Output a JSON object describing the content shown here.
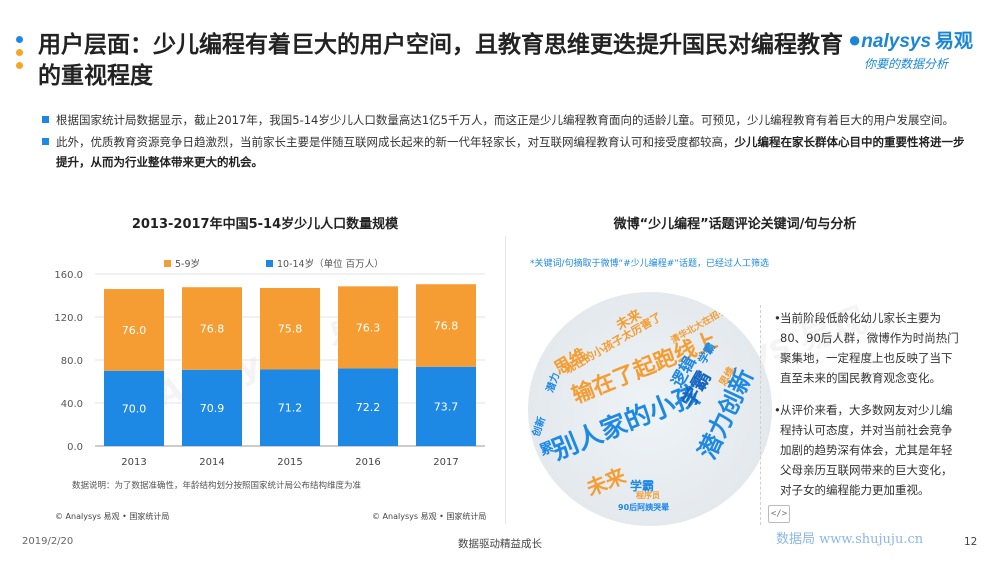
{
  "header": {
    "title": "用户层面：少儿编程有着巨大的用户空间，且教育思维更迭提升国民对编程教育的重视程度",
    "dot_colors": [
      "#1e88e5",
      "#f5a623",
      "#f5a623"
    ],
    "logo_text": "nalysys",
    "logo_cn": "易观",
    "logo_tagline": "你要的数据分析"
  },
  "bullets": [
    {
      "text": "根据国家统计局数据显示，截止2017年，我国5-14岁少儿人口数量高达1亿5千万人，而这正是少儿编程教育面向的适龄儿童。可预见，少儿编程教育有着巨大的用户发展空间。",
      "bold": ""
    },
    {
      "text": "此外，优质教育资源竞争日趋激烈，当前家长主要是伴随互联网成长起来的新一代年轻家长，对互联网编程教育认可和接受度都较高，",
      "bold": "少儿编程在家长群体心目中的重要性将进一步提升，从而为行业整体带来更大的机会。"
    }
  ],
  "chart_data": {
    "type": "bar",
    "stacked": true,
    "title": "2013-2017年中国5-14岁少儿人口数量规模",
    "categories": [
      "2013",
      "2014",
      "2015",
      "2016",
      "2017"
    ],
    "series": [
      {
        "name": "10-14岁（单位 百万人）",
        "values": [
          70.0,
          70.9,
          71.2,
          72.2,
          73.7
        ],
        "color": "#1e88e5"
      },
      {
        "name": "5-9岁",
        "values": [
          76.0,
          76.8,
          75.8,
          76.3,
          76.8
        ],
        "color": "#f59d32"
      }
    ],
    "ylim": [
      0,
      160
    ],
    "yticks": [
      "0.0",
      "40.0",
      "80.0",
      "120.0",
      "160.0"
    ],
    "grid": true,
    "legend_position": "top"
  },
  "chart_note": "数据说明：为了数据准确性，年龄结构划分按照国家统计局公布结构维度为准",
  "source_left": "© Analysys 易观 • 国家统计局",
  "source_right": "© Analysys 易观 • 国家统计局",
  "wordcloud": {
    "title": "微博“少儿编程”话题评论关键词/句与分析",
    "note": "*关键词/句摘取于微博“#少儿编程#”话题，已经过人工筛选",
    "words": [
      {
        "text": "别人家的小孩",
        "color": "#1e88e5"
      },
      {
        "text": "输在了起跑线上",
        "color": "#f59d32"
      },
      {
        "text": "潜力创新",
        "color": "#1e88e5"
      },
      {
        "text": "学霸",
        "color": "#1565c0"
      },
      {
        "text": "未来",
        "color": "#f59d32"
      },
      {
        "text": "逻辑",
        "color": "#1e88e5"
      },
      {
        "text": "思维",
        "color": "#f59d32"
      },
      {
        "text": "现在的小孩子太厉害了",
        "color": "#f59d32"
      },
      {
        "text": "累",
        "color": "#1e88e5"
      },
      {
        "text": "学霸",
        "color": "#1e88e5"
      },
      {
        "text": "90后阿姨哭晕",
        "color": "#1e88e5"
      },
      {
        "text": "程序员",
        "color": "#f59d32"
      },
      {
        "text": "清华北大在招手",
        "color": "#f59d32"
      },
      {
        "text": "潜力",
        "color": "#1e88e5"
      },
      {
        "text": "创新",
        "color": "#1e88e5"
      },
      {
        "text": "未来",
        "color": "#f59d32"
      },
      {
        "text": "学霸",
        "color": "#1e88e5"
      },
      {
        "text": "思维",
        "color": "#f59d32"
      }
    ]
  },
  "analysis": [
    "当前阶段低龄化幼儿家长主要为80、90后人群，微博作为时尚热门聚集地，一定程度上也反映了当下直至未来的国民教育观念变化。",
    "从评价来看，大多数网友对少儿编程持认可态度，并对当前社会竞争加剧的趋势深有体会，尤其是年轻父母亲历互联网带来的巨大变化，对子女的编程能力更加重视。"
  ],
  "footer": {
    "date": "2019/2/20",
    "center": "数据驱动精益成长",
    "page": "12",
    "site": "数据局  www.shujuju.cn"
  }
}
